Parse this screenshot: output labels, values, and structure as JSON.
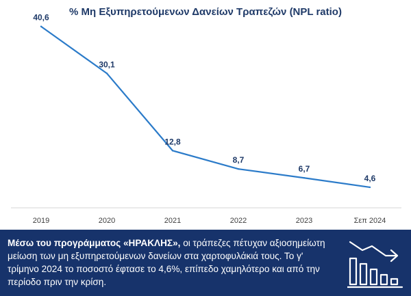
{
  "chart_data": {
    "type": "line",
    "title": "% Μη Εξυπηρετούμενων Δανείων Τραπεζών (NPL ratio)",
    "categories": [
      "2019",
      "2020",
      "2021",
      "2022",
      "2023",
      "Σεπ 2024"
    ],
    "series": [
      {
        "values": [
          40.6,
          30.1,
          12.8,
          8.7,
          6.7,
          4.6
        ],
        "labels": [
          "40,6",
          "30,1",
          "12,8",
          "8,7",
          "6,7",
          "4,6"
        ]
      }
    ],
    "xlabel": "",
    "ylabel": "",
    "ylim": [
      0,
      45
    ],
    "grid": false,
    "line_color": "#2b7bc9"
  },
  "footer": {
    "bold_text": "Μέσω του προγράμματος «ΗΡΑΚΛΗΣ»,",
    "text": " οι τράπεζες πέτυχαν αξιοσημείωτη μείωση των μη εξυπηρετούμενων δανείων στα χαρτοφυλάκιά τους.  Το γ' τρίμηνο 2024 το ποσοστό έφτασε το 4,6%, επίπεδο χαμηλότερο και από την περίοδο πριν την κρίση.",
    "icon": "declining-bar-chart-icon",
    "background_color": "#17336b"
  }
}
